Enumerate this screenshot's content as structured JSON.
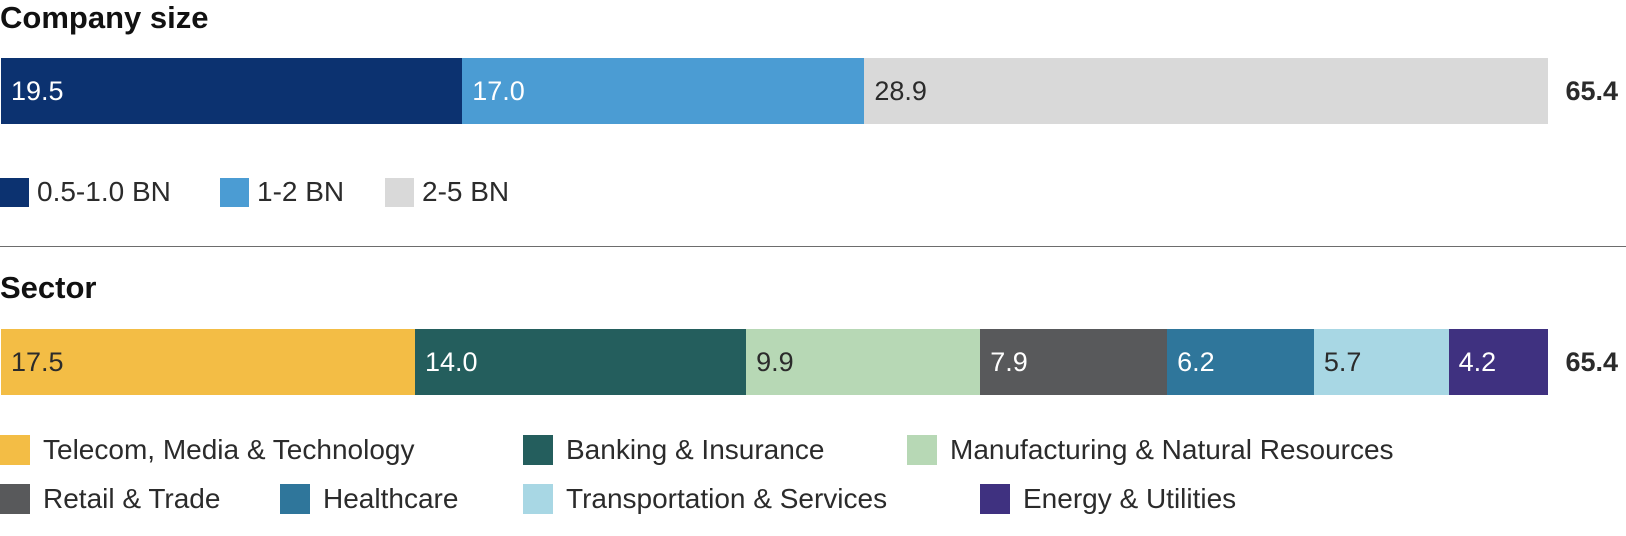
{
  "colors": {
    "size_0.5_1": "#0c3270",
    "size_1_2": "#4b9cd3",
    "size_2_5": "#d9d9d9",
    "tmt": "#f3bd45",
    "banking": "#245e5d",
    "manufacturing": "#b7d8b5",
    "retail": "#58595b",
    "healthcare": "#2f769b",
    "transportation": "#a8d7e4",
    "energy": "#3f3180"
  },
  "chart_data": [
    {
      "type": "bar",
      "orientation": "horizontal",
      "stacked": true,
      "title": "Company size",
      "total_label": "65.4",
      "xlim": [
        0,
        65.4
      ],
      "series": [
        {
          "name": "0.5-1.0 BN",
          "value": 19.5,
          "label": "19.5",
          "color": "#0c3270",
          "text_color": "#ffffff"
        },
        {
          "name": "1-2 BN",
          "value": 17.0,
          "label": "17.0",
          "color": "#4b9cd3",
          "text_color": "#ffffff"
        },
        {
          "name": "2-5 BN",
          "value": 28.9,
          "label": "28.9",
          "color": "#d9d9d9",
          "text_color": "#2b2b2b"
        }
      ],
      "legend": "bottom"
    },
    {
      "type": "bar",
      "orientation": "horizontal",
      "stacked": true,
      "title": "Sector",
      "total_label": "65.4",
      "xlim": [
        0,
        65.4
      ],
      "series": [
        {
          "name": "Telecom, Media & Technology",
          "value": 17.5,
          "label": "17.5",
          "color": "#f3bd45",
          "text_color": "#2b2b2b"
        },
        {
          "name": "Banking & Insurance",
          "value": 14.0,
          "label": "14.0",
          "color": "#245e5d",
          "text_color": "#ffffff"
        },
        {
          "name": "Manufacturing & Natural Resources",
          "value": 9.9,
          "label": "9.9",
          "color": "#b7d8b5",
          "text_color": "#2b2b2b"
        },
        {
          "name": "Retail & Trade",
          "value": 7.9,
          "label": "7.9",
          "color": "#58595b",
          "text_color": "#ffffff"
        },
        {
          "name": "Healthcare",
          "value": 6.2,
          "label": "6.2",
          "color": "#2f769b",
          "text_color": "#ffffff"
        },
        {
          "name": "Transportation & Services",
          "value": 5.7,
          "label": "5.7",
          "color": "#a8d7e4",
          "text_color": "#2b2b2b"
        },
        {
          "name": "Energy & Utilities",
          "value": 4.2,
          "label": "4.2",
          "color": "#3f3180",
          "text_color": "#ffffff"
        }
      ],
      "legend": "bottom"
    }
  ]
}
